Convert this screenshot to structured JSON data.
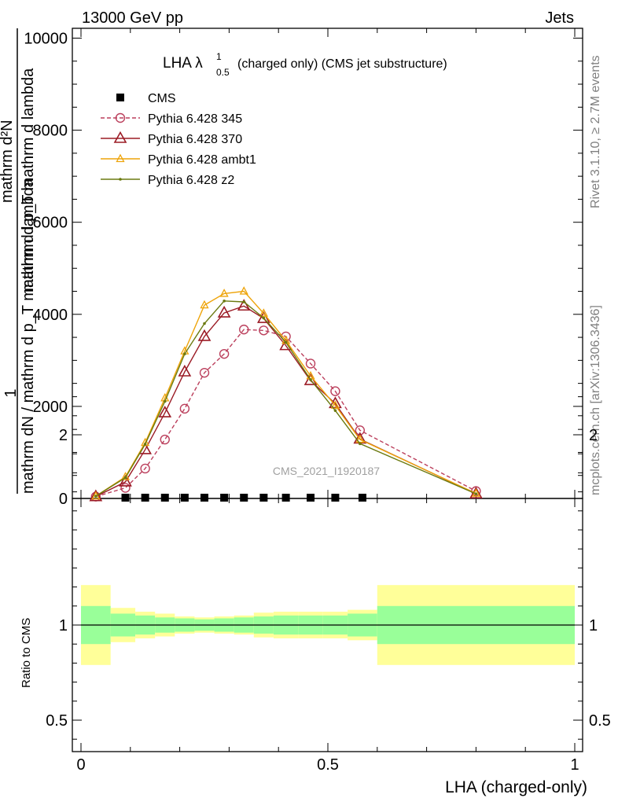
{
  "header": {
    "left": "13000 GeV pp",
    "right": "Jets"
  },
  "side_labels": {
    "rivet": "Rivet 3.1.10, ≥ 2.7M events",
    "mcplots": "mcplots.cern.ch [arXiv:1306.3436]"
  },
  "chart_data": [
    {
      "type": "line",
      "title_main": "LHA",
      "title_lambda": "λ",
      "title_sup": "1",
      "title_sub": "0.5",
      "title_rest": "(charged only) (CMS jet substructure)",
      "watermark": "CMS_2021_I1920187",
      "ylabel_numerator": "1",
      "ylabel_denominator": "mathrm dN / mathrm d p_T mathrm d lambda",
      "ylabel_overlay_top": "mathrm d²N",
      "ylabel_overlay_bottom": "mathrm d p_T mathrm d lambda",
      "xlim": [
        0,
        1
      ],
      "ylim": [
        0,
        10200
      ],
      "yticks": [
        0,
        2000,
        4000,
        6000,
        8000,
        10000
      ],
      "yticks_text": [
        "0",
        "2000",
        "4000",
        "6000",
        "8000",
        "10000"
      ],
      "legend_position": "top-left",
      "series": [
        {
          "name": "CMS",
          "color": "#000000",
          "marker": "square",
          "x": [
            0.09,
            0.13,
            0.17,
            0.21,
            0.25,
            0.29,
            0.33,
            0.37,
            0.415,
            0.465,
            0.515,
            0.57
          ],
          "y": [
            0,
            0,
            0,
            0,
            0,
            0,
            0,
            0,
            0,
            0,
            0,
            0
          ]
        },
        {
          "name": "Pythia 6.428 345",
          "color": "#bb3f5c",
          "marker": "circle",
          "dash": true,
          "x": [
            0.03,
            0.09,
            0.13,
            0.17,
            0.21,
            0.25,
            0.29,
            0.33,
            0.37,
            0.415,
            0.465,
            0.515,
            0.565,
            0.8
          ],
          "y": [
            40,
            230,
            650,
            1280,
            1950,
            2730,
            3140,
            3670,
            3650,
            3520,
            2930,
            2330,
            1480,
            160
          ]
        },
        {
          "name": "Pythia 6.428 370",
          "color": "#9b1b25",
          "marker": "triangle",
          "x": [
            0.03,
            0.09,
            0.13,
            0.17,
            0.21,
            0.25,
            0.29,
            0.33,
            0.37,
            0.415,
            0.465,
            0.515,
            0.565,
            0.8
          ],
          "y": [
            40,
            360,
            1060,
            1860,
            2750,
            3520,
            4030,
            4180,
            3910,
            3320,
            2560,
            2060,
            1290,
            100
          ]
        },
        {
          "name": "Pythia 6.428 ambt1",
          "color": "#eea40a",
          "marker": "triangle-small",
          "x": [
            0.03,
            0.09,
            0.13,
            0.17,
            0.21,
            0.25,
            0.29,
            0.33,
            0.37,
            0.415,
            0.465,
            0.515,
            0.565,
            0.8
          ],
          "y": [
            50,
            470,
            1210,
            2180,
            3200,
            4200,
            4450,
            4500,
            4020,
            3430,
            2660,
            2020,
            1280,
            110
          ]
        },
        {
          "name": "Pythia 6.428 z2",
          "color": "#6b7a10",
          "marker": "dot",
          "x": [
            0.03,
            0.09,
            0.13,
            0.17,
            0.21,
            0.25,
            0.29,
            0.33,
            0.37,
            0.415,
            0.465,
            0.515,
            0.565,
            0.8
          ],
          "y": [
            50,
            450,
            1180,
            2110,
            3140,
            3800,
            4290,
            4270,
            3920,
            3390,
            2580,
            1910,
            1190,
            100
          ]
        }
      ]
    },
    {
      "type": "area",
      "ylabel": "Ratio to CMS",
      "xlabel": "LHA (charged-only)",
      "xlim": [
        0,
        1
      ],
      "ylim": [
        0.35,
        2.3
      ],
      "yticks": [
        0.5,
        1,
        2
      ],
      "yticks_text": [
        "0.5",
        "1",
        "2"
      ],
      "xticks": [
        0,
        0.5,
        1
      ],
      "xticks_text": [
        "0",
        "0.5",
        "1"
      ],
      "reference_line": 1,
      "bands": {
        "edges": [
          0,
          0.06,
          0.11,
          0.15,
          0.19,
          0.23,
          0.27,
          0.31,
          0.35,
          0.39,
          0.44,
          0.49,
          0.54,
          0.6,
          1.0
        ],
        "green_lo": [
          0.9,
          0.94,
          0.95,
          0.96,
          0.965,
          0.97,
          0.965,
          0.96,
          0.955,
          0.95,
          0.95,
          0.95,
          0.94,
          0.9
        ],
        "green_hi": [
          1.1,
          1.06,
          1.05,
          1.04,
          1.035,
          1.03,
          1.035,
          1.04,
          1.045,
          1.05,
          1.05,
          1.05,
          1.06,
          1.1
        ],
        "yellow_lo": [
          0.79,
          0.91,
          0.93,
          0.94,
          0.955,
          0.96,
          0.955,
          0.95,
          0.935,
          0.93,
          0.93,
          0.93,
          0.92,
          0.79
        ],
        "yellow_hi": [
          1.21,
          1.09,
          1.07,
          1.06,
          1.045,
          1.04,
          1.045,
          1.05,
          1.065,
          1.07,
          1.07,
          1.07,
          1.08,
          1.21
        ],
        "green_color": "#99ff99",
        "yellow_color": "#ffff99"
      }
    }
  ]
}
